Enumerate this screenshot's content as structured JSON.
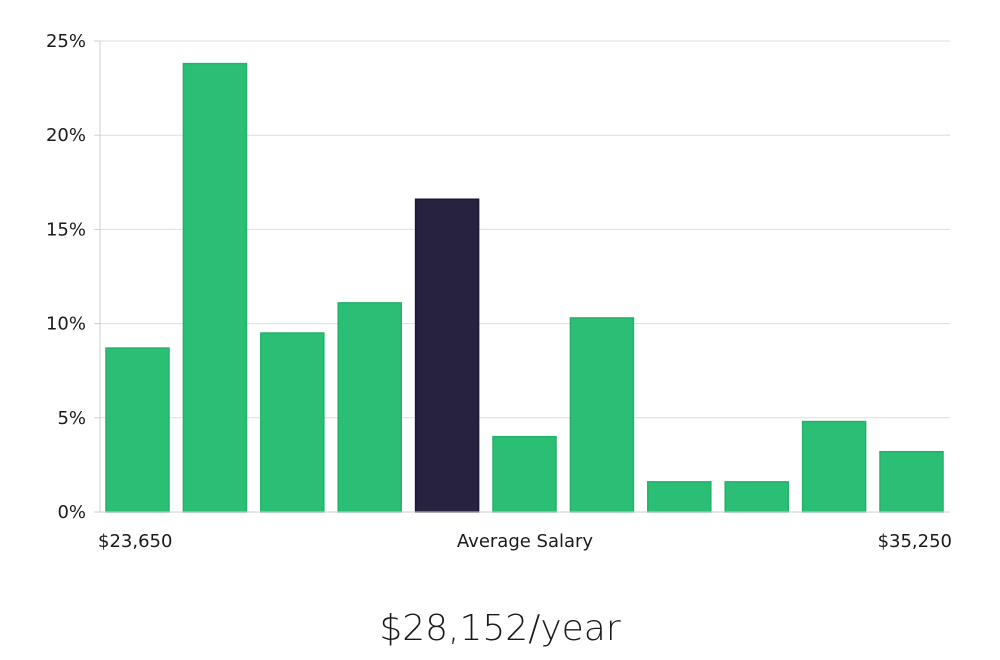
{
  "chart_data": {
    "type": "bar",
    "title": "",
    "xlabel": "Average Salary",
    "ylabel": "",
    "ylim": [
      0,
      25
    ],
    "y_ticks": [
      0,
      5,
      10,
      15,
      20,
      25
    ],
    "y_tick_labels": [
      "0%",
      "5%",
      "10%",
      "15%",
      "20%",
      "25%"
    ],
    "grid": true,
    "x_range_labels": {
      "min": "$23,650",
      "center": "Average Salary",
      "max": "$35,250"
    },
    "bins": 11,
    "values": [
      8.7,
      23.8,
      9.5,
      11.1,
      16.6,
      4.0,
      10.3,
      1.6,
      1.6,
      4.8,
      3.2
    ],
    "highlight_index": 4,
    "colors": {
      "bar": "#2bbf76",
      "bar_border": "#22b06a",
      "highlight": "#27233f",
      "highlight_border": "#1a1733"
    }
  },
  "summary": {
    "salary_text": "$28,152/year"
  }
}
